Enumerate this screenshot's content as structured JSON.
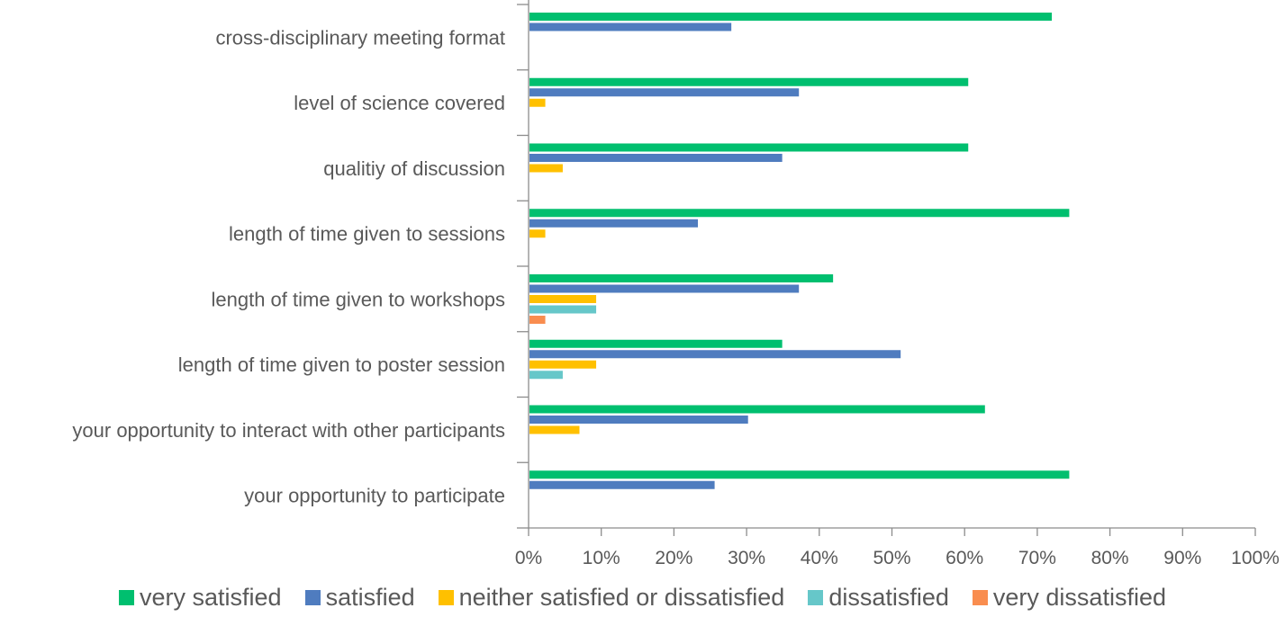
{
  "chart_data": {
    "type": "bar",
    "orientation": "horizontal",
    "categories": [
      "cross-disciplinary meeting format",
      "level of science covered",
      "qualitiy of discussion",
      "length of time given to sessions",
      "length of time given to workshops",
      "length of time given to poster session",
      "your opportunity to interact with other participants",
      "your opportunity to participate"
    ],
    "series": [
      {
        "name": "very satisfied",
        "color": "#00BF6F",
        "values": [
          72,
          60.5,
          60.5,
          74.4,
          41.9,
          34.9,
          62.8,
          74.4
        ]
      },
      {
        "name": "satisfied",
        "color": "#4F7CBF",
        "values": [
          27.9,
          37.2,
          34.9,
          23.3,
          37.2,
          51.2,
          30.2,
          25.6
        ]
      },
      {
        "name": "neither satisfied or dissatisfied",
        "color": "#FFC000",
        "values": [
          0,
          2.3,
          4.7,
          2.3,
          9.3,
          9.3,
          7.0,
          0
        ]
      },
      {
        "name": "dissatisfied",
        "color": "#66C7C9",
        "values": [
          0,
          0,
          0,
          0,
          9.3,
          4.7,
          0,
          0
        ]
      },
      {
        "name": "very dissatisfied",
        "color": "#F98D4F",
        "values": [
          0,
          0,
          0,
          0,
          2.3,
          0,
          0,
          0
        ]
      }
    ],
    "xlim": [
      0,
      100
    ],
    "xticks": [
      "0%",
      "10%",
      "20%",
      "30%",
      "40%",
      "50%",
      "60%",
      "70%",
      "80%",
      "90%",
      "100%"
    ],
    "xlabel": "",
    "ylabel": "",
    "title": "",
    "grid": false,
    "legend_position": "bottom"
  }
}
